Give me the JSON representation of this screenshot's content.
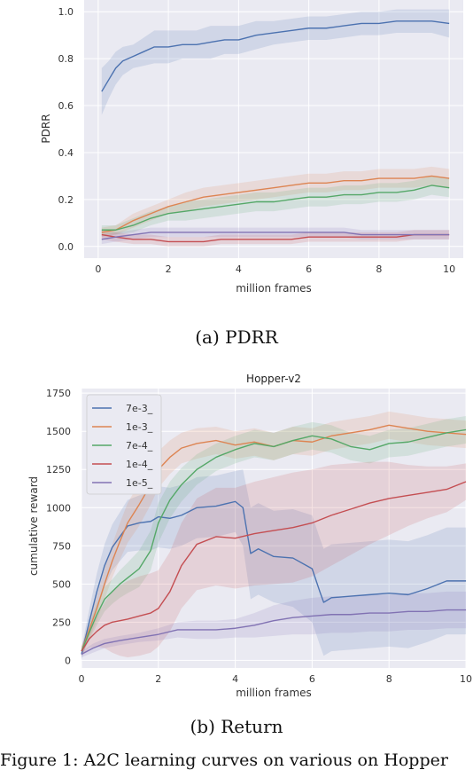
{
  "chart_data": [
    {
      "type": "line",
      "title": "",
      "xlabel": "million frames",
      "ylabel": "PDRR",
      "xlim": [
        -0.4,
        10.4
      ],
      "ylim": [
        -0.05,
        1.05
      ],
      "xticks": [
        0,
        2,
        4,
        6,
        8,
        10
      ],
      "yticks": [
        0.0,
        0.2,
        0.4,
        0.6,
        0.8,
        1.0
      ],
      "ytick_labels": [
        "0.0",
        "0.2",
        "0.4",
        "0.6",
        "0.8",
        "1.0"
      ],
      "grid": true,
      "legend": "none",
      "series": [
        {
          "color": "#4c72b0",
          "x": [
            0.1,
            0.3,
            0.5,
            0.7,
            1.0,
            1.3,
            1.6,
            2.0,
            2.4,
            2.8,
            3.2,
            3.6,
            4.0,
            4.5,
            5.0,
            5.5,
            6.0,
            6.5,
            7.0,
            7.5,
            8.0,
            8.5,
            9.0,
            9.5,
            10.0
          ],
          "y": [
            0.66,
            0.71,
            0.76,
            0.79,
            0.81,
            0.83,
            0.85,
            0.85,
            0.86,
            0.86,
            0.87,
            0.88,
            0.88,
            0.9,
            0.91,
            0.92,
            0.93,
            0.93,
            0.94,
            0.95,
            0.95,
            0.96,
            0.96,
            0.96,
            0.95
          ],
          "band": [
            0.1,
            0.08,
            0.07,
            0.06,
            0.05,
            0.06,
            0.07,
            0.07,
            0.06,
            0.06,
            0.07,
            0.06,
            0.06,
            0.06,
            0.05,
            0.05,
            0.05,
            0.05,
            0.05,
            0.05,
            0.05,
            0.05,
            0.05,
            0.05,
            0.06
          ]
        },
        {
          "color": "#dd8452",
          "x": [
            0.1,
            0.5,
            1.0,
            1.5,
            2.0,
            2.5,
            3.0,
            3.5,
            4.0,
            4.5,
            5.0,
            5.5,
            6.0,
            6.5,
            7.0,
            7.5,
            8.0,
            8.5,
            9.0,
            9.5,
            10.0
          ],
          "y": [
            0.06,
            0.07,
            0.11,
            0.14,
            0.17,
            0.19,
            0.21,
            0.22,
            0.23,
            0.24,
            0.25,
            0.26,
            0.27,
            0.27,
            0.28,
            0.28,
            0.29,
            0.29,
            0.29,
            0.3,
            0.29
          ],
          "band": [
            0.02,
            0.02,
            0.03,
            0.03,
            0.03,
            0.04,
            0.04,
            0.04,
            0.04,
            0.04,
            0.04,
            0.04,
            0.04,
            0.04,
            0.04,
            0.04,
            0.04,
            0.04,
            0.04,
            0.04,
            0.04
          ]
        },
        {
          "color": "#55a868",
          "x": [
            0.1,
            0.5,
            1.0,
            1.5,
            2.0,
            2.5,
            3.0,
            3.5,
            4.0,
            4.5,
            5.0,
            5.5,
            6.0,
            6.5,
            7.0,
            7.5,
            8.0,
            8.5,
            9.0,
            9.5,
            10.0
          ],
          "y": [
            0.07,
            0.07,
            0.09,
            0.12,
            0.14,
            0.15,
            0.16,
            0.17,
            0.18,
            0.19,
            0.19,
            0.2,
            0.21,
            0.21,
            0.22,
            0.22,
            0.23,
            0.23,
            0.24,
            0.26,
            0.25
          ],
          "band": [
            0.02,
            0.02,
            0.03,
            0.03,
            0.03,
            0.04,
            0.04,
            0.04,
            0.04,
            0.04,
            0.04,
            0.04,
            0.04,
            0.04,
            0.04,
            0.04,
            0.04,
            0.04,
            0.04,
            0.04,
            0.04
          ]
        },
        {
          "color": "#c44e52",
          "x": [
            0.1,
            0.5,
            1.0,
            1.5,
            2.0,
            2.5,
            3.0,
            3.5,
            4.0,
            4.5,
            5.0,
            5.5,
            6.0,
            6.5,
            7.0,
            7.5,
            8.0,
            8.5,
            9.0,
            9.5,
            10.0
          ],
          "y": [
            0.05,
            0.04,
            0.03,
            0.03,
            0.02,
            0.02,
            0.02,
            0.03,
            0.03,
            0.03,
            0.03,
            0.03,
            0.04,
            0.04,
            0.04,
            0.04,
            0.04,
            0.04,
            0.05,
            0.05,
            0.05
          ],
          "band": [
            0.02,
            0.02,
            0.02,
            0.02,
            0.02,
            0.02,
            0.02,
            0.02,
            0.02,
            0.02,
            0.02,
            0.02,
            0.02,
            0.02,
            0.02,
            0.02,
            0.02,
            0.02,
            0.02,
            0.02,
            0.02
          ]
        },
        {
          "color": "#8172b3",
          "x": [
            0.1,
            0.5,
            1.0,
            1.5,
            2.0,
            2.5,
            3.0,
            3.5,
            4.0,
            4.5,
            5.0,
            5.5,
            6.0,
            6.5,
            7.0,
            7.5,
            8.0,
            8.5,
            9.0,
            9.5,
            10.0
          ],
          "y": [
            0.03,
            0.04,
            0.05,
            0.06,
            0.06,
            0.06,
            0.06,
            0.06,
            0.06,
            0.06,
            0.06,
            0.06,
            0.06,
            0.06,
            0.06,
            0.05,
            0.05,
            0.05,
            0.05,
            0.05,
            0.05
          ],
          "band": [
            0.02,
            0.02,
            0.02,
            0.02,
            0.02,
            0.02,
            0.02,
            0.02,
            0.02,
            0.02,
            0.02,
            0.02,
            0.02,
            0.02,
            0.02,
            0.02,
            0.02,
            0.02,
            0.02,
            0.02,
            0.02
          ]
        }
      ]
    },
    {
      "type": "line",
      "title": "Hopper-v2",
      "xlabel": "million frames",
      "ylabel": "cumulative reward",
      "xlim": [
        0,
        10
      ],
      "ylim": [
        -50,
        1780
      ],
      "xticks": [
        0,
        2,
        4,
        6,
        8,
        10
      ],
      "yticks": [
        0,
        250,
        500,
        750,
        1000,
        1250,
        1500,
        1750
      ],
      "grid": true,
      "legend": "top-left",
      "series": [
        {
          "name": "7e-3_",
          "color": "#4c72b0",
          "x": [
            0,
            0.2,
            0.4,
            0.6,
            0.8,
            1.0,
            1.2,
            1.5,
            1.8,
            2.0,
            2.3,
            2.6,
            3.0,
            3.5,
            4.0,
            4.2,
            4.4,
            4.6,
            5.0,
            5.5,
            6.0,
            6.2,
            6.3,
            6.5,
            7.0,
            7.5,
            8.0,
            8.5,
            9.0,
            9.5,
            10.0
          ],
          "y": [
            40,
            250,
            450,
            620,
            740,
            810,
            880,
            900,
            910,
            940,
            930,
            950,
            1000,
            1010,
            1040,
            1000,
            700,
            730,
            680,
            670,
            600,
            450,
            380,
            410,
            420,
            430,
            440,
            430,
            470,
            520,
            520
          ],
          "band": [
            40,
            80,
            120,
            140,
            150,
            160,
            170,
            180,
            190,
            200,
            200,
            200,
            200,
            200,
            200,
            250,
            300,
            300,
            300,
            320,
            350,
            350,
            350,
            350,
            350,
            350,
            350,
            350,
            350,
            350,
            350
          ]
        },
        {
          "name": "1e-3_",
          "color": "#dd8452",
          "x": [
            0,
            0.2,
            0.4,
            0.6,
            0.8,
            1.0,
            1.2,
            1.5,
            1.8,
            2.0,
            2.3,
            2.6,
            3.0,
            3.5,
            4.0,
            4.5,
            5.0,
            5.5,
            6.0,
            6.5,
            7.0,
            7.5,
            8.0,
            8.5,
            9.0,
            9.5,
            10.0
          ],
          "y": [
            60,
            200,
            340,
            500,
            650,
            780,
            900,
            1020,
            1150,
            1250,
            1330,
            1390,
            1420,
            1440,
            1410,
            1430,
            1400,
            1440,
            1430,
            1470,
            1490,
            1510,
            1540,
            1520,
            1500,
            1490,
            1480
          ],
          "band": [
            30,
            60,
            80,
            100,
            110,
            120,
            130,
            140,
            130,
            120,
            110,
            100,
            100,
            90,
            90,
            90,
            90,
            90,
            90,
            90,
            90,
            90,
            90,
            90,
            90,
            90,
            90
          ]
        },
        {
          "name": "7e-4_",
          "color": "#55a868",
          "x": [
            0,
            0.2,
            0.4,
            0.6,
            0.8,
            1.0,
            1.2,
            1.5,
            1.8,
            2.0,
            2.3,
            2.6,
            3.0,
            3.5,
            4.0,
            4.5,
            5.0,
            5.5,
            6.0,
            6.5,
            7.0,
            7.5,
            8.0,
            8.5,
            9.0,
            9.5,
            10.0
          ],
          "y": [
            60,
            180,
            300,
            400,
            450,
            500,
            540,
            600,
            720,
            900,
            1050,
            1150,
            1250,
            1330,
            1380,
            1420,
            1400,
            1440,
            1470,
            1450,
            1400,
            1380,
            1420,
            1430,
            1460,
            1490,
            1510
          ],
          "band": [
            30,
            50,
            70,
            80,
            80,
            90,
            100,
            120,
            130,
            130,
            120,
            110,
            100,
            90,
            90,
            90,
            90,
            90,
            90,
            90,
            90,
            90,
            90,
            90,
            90,
            90,
            90
          ]
        },
        {
          "name": "1e-4_",
          "color": "#c44e52",
          "x": [
            0,
            0.2,
            0.4,
            0.6,
            0.8,
            1.0,
            1.2,
            1.5,
            1.8,
            2.0,
            2.3,
            2.6,
            3.0,
            3.5,
            4.0,
            4.5,
            5.0,
            5.5,
            6.0,
            6.5,
            7.0,
            7.5,
            8.0,
            8.5,
            9.0,
            9.5,
            10.0
          ],
          "y": [
            60,
            140,
            190,
            230,
            250,
            260,
            270,
            290,
            310,
            340,
            450,
            620,
            760,
            810,
            800,
            830,
            850,
            870,
            900,
            950,
            990,
            1030,
            1060,
            1080,
            1100,
            1120,
            1170
          ],
          "band": [
            30,
            60,
            100,
            150,
            200,
            230,
            250,
            260,
            260,
            250,
            260,
            280,
            300,
            320,
            330,
            340,
            350,
            360,
            350,
            330,
            300,
            270,
            240,
            200,
            170,
            150,
            120
          ]
        },
        {
          "name": "1e-5_",
          "color": "#8172b3",
          "x": [
            0,
            0.3,
            0.6,
            1.0,
            1.5,
            2.0,
            2.5,
            3.0,
            3.5,
            4.0,
            4.5,
            5.0,
            5.5,
            6.0,
            6.5,
            7.0,
            7.5,
            8.0,
            8.5,
            9.0,
            9.5,
            10.0
          ],
          "y": [
            40,
            80,
            110,
            130,
            150,
            170,
            200,
            200,
            200,
            210,
            230,
            260,
            280,
            290,
            300,
            300,
            310,
            310,
            320,
            320,
            330,
            330
          ],
          "band": [
            20,
            30,
            30,
            30,
            30,
            40,
            50,
            60,
            60,
            60,
            80,
            100,
            110,
            120,
            120,
            120,
            120,
            120,
            120,
            120,
            120,
            120
          ]
        }
      ]
    }
  ],
  "captions": {
    "a": "(a) PDRR",
    "b": "(b) Return"
  },
  "bottom_text": "Figure 1: A2C learning curves on various on Hopper"
}
